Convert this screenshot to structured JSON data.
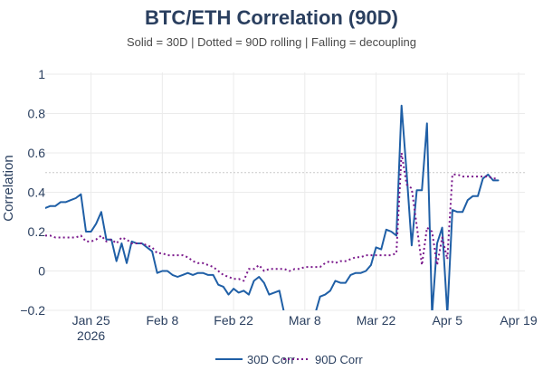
{
  "chart_data": {
    "type": "line",
    "title": "BTC/ETH Correlation (90D)",
    "subtitle": "Solid = 30D | Dotted = 90D rolling | Falling = decoupling",
    "ylabel": "Correlation",
    "xlabel": "",
    "ylim": [
      -0.2,
      1.05
    ],
    "yticks": [
      {
        "value": 1,
        "label": "1"
      },
      {
        "value": 0.8,
        "label": "0.8"
      },
      {
        "value": 0.6,
        "label": "0.6"
      },
      {
        "value": 0.4,
        "label": "0.4"
      },
      {
        "value": 0.2,
        "label": "0.2"
      },
      {
        "value": 0,
        "label": "0"
      },
      {
        "value": -0.2,
        "label": "−0.2"
      }
    ],
    "x_range_days": [
      0,
      104
    ],
    "xticks": [
      {
        "day": 9,
        "label": "Jan 25",
        "sublabel": "2026"
      },
      {
        "day": 23,
        "label": "Feb 8",
        "sublabel": ""
      },
      {
        "day": 37,
        "label": "Feb 22",
        "sublabel": ""
      },
      {
        "day": 51,
        "label": "Mar 8",
        "sublabel": ""
      },
      {
        "day": 65,
        "label": "Mar 22",
        "sublabel": ""
      },
      {
        "day": 79,
        "label": "Apr 5",
        "sublabel": ""
      },
      {
        "day": 93,
        "label": "Apr 19",
        "sublabel": ""
      }
    ],
    "reference_line": {
      "value": 0.5,
      "style": "dotted",
      "color": "#c8c8c8"
    },
    "series": [
      {
        "name": "30D Corr",
        "color": "#1f5fa6",
        "dash": "solid",
        "points": [
          [
            0,
            0.32
          ],
          [
            1,
            0.33
          ],
          [
            2,
            0.33
          ],
          [
            3,
            0.35
          ],
          [
            4,
            0.35
          ],
          [
            5,
            0.36
          ],
          [
            6,
            0.37
          ],
          [
            7,
            0.39
          ],
          [
            8,
            0.2
          ],
          [
            9,
            0.2
          ],
          [
            10,
            0.24
          ],
          [
            11,
            0.3
          ],
          [
            12,
            0.16
          ],
          [
            13,
            0.16
          ],
          [
            14,
            0.05
          ],
          [
            15,
            0.14
          ],
          [
            16,
            0.04
          ],
          [
            17,
            0.15
          ],
          [
            18,
            0.14
          ],
          [
            19,
            0.14
          ],
          [
            20,
            0.12
          ],
          [
            21,
            0.1
          ],
          [
            22,
            -0.01
          ],
          [
            23,
            0.0
          ],
          [
            24,
            0.0
          ],
          [
            25,
            -0.02
          ],
          [
            26,
            -0.03
          ],
          [
            27,
            -0.02
          ],
          [
            28,
            -0.01
          ],
          [
            29,
            -0.02
          ],
          [
            30,
            -0.01
          ],
          [
            31,
            -0.01
          ],
          [
            32,
            -0.02
          ],
          [
            33,
            -0.02
          ],
          [
            34,
            -0.07
          ],
          [
            35,
            -0.08
          ],
          [
            36,
            -0.12
          ],
          [
            37,
            -0.09
          ],
          [
            38,
            -0.11
          ],
          [
            39,
            -0.1
          ],
          [
            40,
            -0.12
          ],
          [
            41,
            -0.05
          ],
          [
            42,
            -0.03
          ],
          [
            43,
            -0.06
          ],
          [
            44,
            -0.12
          ],
          [
            45,
            -0.11
          ],
          [
            46,
            -0.1
          ],
          [
            47,
            -0.22
          ],
          [
            48,
            null
          ],
          [
            49,
            null
          ],
          [
            50,
            null
          ],
          [
            51,
            null
          ],
          [
            52,
            null
          ],
          [
            53,
            -0.22
          ],
          [
            54,
            -0.13
          ],
          [
            55,
            -0.12
          ],
          [
            56,
            -0.1
          ],
          [
            57,
            -0.05
          ],
          [
            58,
            -0.06
          ],
          [
            59,
            -0.06
          ],
          [
            60,
            -0.02
          ],
          [
            61,
            -0.01
          ],
          [
            62,
            -0.01
          ],
          [
            63,
            0.0
          ],
          [
            64,
            0.03
          ],
          [
            65,
            0.12
          ],
          [
            66,
            0.11
          ],
          [
            67,
            0.21
          ],
          [
            68,
            0.2
          ],
          [
            69,
            0.18
          ],
          [
            70,
            0.84
          ],
          [
            71,
            0.5
          ],
          [
            72,
            0.13
          ],
          [
            73,
            0.41
          ],
          [
            74,
            0.41
          ],
          [
            75,
            0.75
          ],
          [
            76,
            -0.22
          ],
          [
            77,
            0.14
          ],
          [
            78,
            0.22
          ],
          [
            79,
            -0.22
          ],
          [
            80,
            0.31
          ],
          [
            81,
            0.3
          ],
          [
            82,
            0.3
          ],
          [
            83,
            0.36
          ],
          [
            84,
            0.38
          ],
          [
            85,
            0.38
          ],
          [
            86,
            0.47
          ],
          [
            87,
            0.49
          ],
          [
            88,
            0.46
          ],
          [
            89,
            0.46
          ]
        ]
      },
      {
        "name": "90D Corr",
        "color": "#7b1a8c",
        "dash": "dotted",
        "points": [
          [
            0,
            0.18
          ],
          [
            1,
            0.18
          ],
          [
            2,
            0.17
          ],
          [
            3,
            0.17
          ],
          [
            4,
            0.17
          ],
          [
            5,
            0.17
          ],
          [
            6,
            0.17
          ],
          [
            7,
            0.18
          ],
          [
            8,
            0.15
          ],
          [
            9,
            0.15
          ],
          [
            10,
            0.16
          ],
          [
            11,
            0.18
          ],
          [
            12,
            0.15
          ],
          [
            13,
            0.16
          ],
          [
            14,
            0.14
          ],
          [
            15,
            0.17
          ],
          [
            16,
            0.16
          ],
          [
            17,
            0.14
          ],
          [
            18,
            0.14
          ],
          [
            19,
            0.14
          ],
          [
            20,
            0.13
          ],
          [
            21,
            0.12
          ],
          [
            22,
            0.09
          ],
          [
            23,
            0.09
          ],
          [
            24,
            0.08
          ],
          [
            25,
            0.08
          ],
          [
            26,
            0.08
          ],
          [
            27,
            0.08
          ],
          [
            28,
            0.07
          ],
          [
            29,
            0.05
          ],
          [
            30,
            0.04
          ],
          [
            31,
            0.04
          ],
          [
            32,
            0.03
          ],
          [
            33,
            0.02
          ],
          [
            34,
            0.0
          ],
          [
            35,
            -0.02
          ],
          [
            36,
            -0.03
          ],
          [
            37,
            -0.04
          ],
          [
            38,
            -0.04
          ],
          [
            39,
            -0.05
          ],
          [
            40,
            0.01
          ],
          [
            41,
            0.01
          ],
          [
            42,
            0.03
          ],
          [
            43,
            0.0
          ],
          [
            44,
            0.01
          ],
          [
            45,
            0.01
          ],
          [
            46,
            0.01
          ],
          [
            47,
            0.01
          ],
          [
            48,
            0.0
          ],
          [
            49,
            0.01
          ],
          [
            50,
            0.01
          ],
          [
            51,
            0.02
          ],
          [
            52,
            0.02
          ],
          [
            53,
            0.02
          ],
          [
            54,
            0.02
          ],
          [
            55,
            0.04
          ],
          [
            56,
            0.05
          ],
          [
            57,
            0.04
          ],
          [
            58,
            0.05
          ],
          [
            59,
            0.05
          ],
          [
            60,
            0.06
          ],
          [
            61,
            0.07
          ],
          [
            62,
            0.07
          ],
          [
            63,
            0.08
          ],
          [
            64,
            0.08
          ],
          [
            65,
            0.08
          ],
          [
            66,
            0.08
          ],
          [
            67,
            0.08
          ],
          [
            68,
            0.08
          ],
          [
            69,
            0.09
          ],
          [
            70,
            0.6
          ],
          [
            71,
            0.44
          ],
          [
            72,
            0.42
          ],
          [
            73,
            0.23
          ],
          [
            74,
            0.03
          ],
          [
            75,
            0.22
          ],
          [
            76,
            0.2
          ],
          [
            77,
            0.03
          ],
          [
            78,
            0.17
          ],
          [
            79,
            0.06
          ],
          [
            80,
            0.49
          ],
          [
            81,
            0.49
          ],
          [
            82,
            0.48
          ],
          [
            83,
            0.48
          ],
          [
            84,
            0.48
          ],
          [
            85,
            0.48
          ],
          [
            86,
            0.48
          ],
          [
            87,
            0.48
          ],
          [
            88,
            0.47
          ],
          [
            89,
            0.47
          ]
        ]
      }
    ],
    "legend": {
      "placement": "bottom-center",
      "entries": [
        "30D Corr",
        "90D Corr"
      ]
    }
  }
}
